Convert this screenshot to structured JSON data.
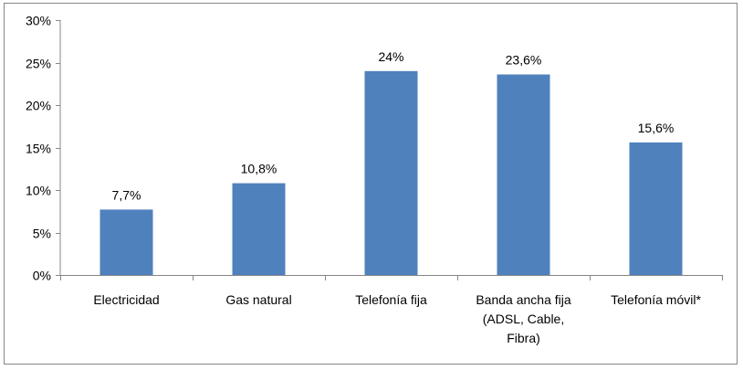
{
  "chart_data": {
    "type": "bar",
    "categories": [
      [
        "Electricidad"
      ],
      [
        "Gas natural"
      ],
      [
        "Telefonía fija"
      ],
      [
        "Banda ancha fija",
        "(ADSL, Cable,",
        "Fibra)"
      ],
      [
        "Telefonía móvil*"
      ]
    ],
    "values": [
      7.7,
      10.8,
      24,
      23.6,
      15.6
    ],
    "data_labels": [
      "7,7%",
      "10,8%",
      "24%",
      "23,6%",
      "15,6%"
    ],
    "y_ticks": [
      0,
      5,
      10,
      15,
      20,
      25,
      30
    ],
    "y_tick_labels": [
      "0%",
      "5%",
      "10%",
      "15%",
      "20%",
      "25%",
      "30%"
    ],
    "ylim": [
      0,
      30
    ],
    "grid": false,
    "legend": "none",
    "bar_color": "#4F81BD",
    "axis_color": "#868686"
  }
}
